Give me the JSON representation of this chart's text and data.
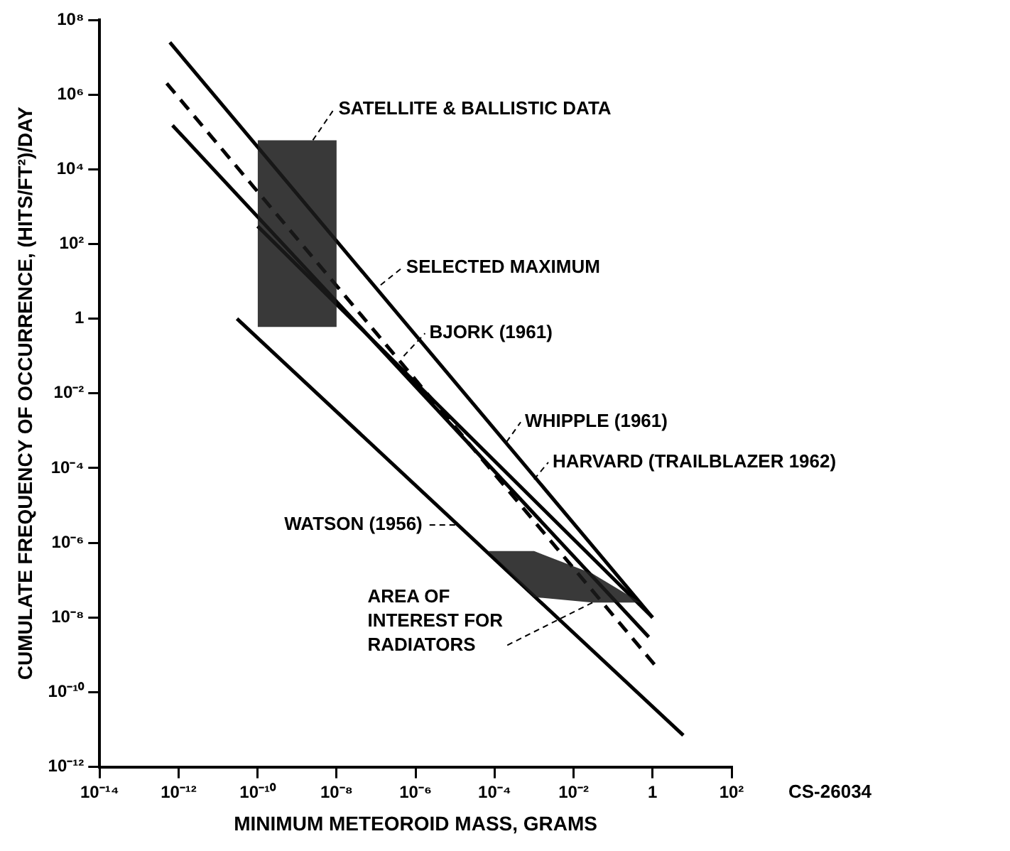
{
  "chart_data": {
    "type": "line",
    "xlabel": "MINIMUM METEOROID MASS, GRAMS",
    "ylabel": "CUMULATE FREQUENCY OF OCCURRENCE, (HITS/FT²)/DAY",
    "log": "xy",
    "grid": false,
    "legend": false,
    "marker": "none",
    "xlim": [
      1e-14,
      100
    ],
    "ylim": [
      1e-12,
      100000000.0
    ],
    "xticks": [
      {
        "value": 1e-14,
        "label": "10⁻¹⁴"
      },
      {
        "value": 1e-12,
        "label": "10⁻¹²"
      },
      {
        "value": 1e-10,
        "label": "10⁻¹⁰"
      },
      {
        "value": 1e-08,
        "label": "10⁻⁸"
      },
      {
        "value": 1e-06,
        "label": "10⁻⁶"
      },
      {
        "value": 0.0001,
        "label": "10⁻⁴"
      },
      {
        "value": 0.01,
        "label": "10⁻²"
      },
      1,
      {
        "value": 100,
        "label": "10²"
      }
    ],
    "yticks": [
      {
        "value": 1e-12,
        "label": "10⁻¹²"
      },
      {
        "value": 1e-10,
        "label": "10⁻¹⁰"
      },
      {
        "value": 1e-08,
        "label": "10⁻⁸"
      },
      {
        "value": 1e-06,
        "label": "10⁻⁶"
      },
      {
        "value": 0.0001,
        "label": "10⁻⁴"
      },
      {
        "value": 0.01,
        "label": "10⁻²"
      },
      1,
      {
        "value": 100,
        "label": "10²"
      },
      {
        "value": 10000,
        "label": "10⁴"
      },
      {
        "value": 1000000,
        "label": "10⁶"
      },
      {
        "value": 100000000,
        "label": "10⁸"
      }
    ],
    "series": [
      {
        "type": "area",
        "color": "#1a1a1a",
        "x": [
          1e-10,
          1e-08
        ],
        "values": [
          null,
          null
        ],
        "lower": [
          0.6,
          0.6
        ],
        "upper": [
          60000,
          60000
        ]
      },
      {
        "type": "area",
        "color": "#1a1a1a",
        "x": [
          7e-05,
          0.001,
          0.03,
          0.5
        ],
        "values": [
          null,
          null,
          null,
          null
        ],
        "lower": [
          6e-07,
          3.5e-08,
          2.5e-08,
          2.5e-08
        ],
        "upper": [
          6e-07,
          6e-07,
          1.5e-07,
          2.5e-08
        ]
      },
      {
        "color": "#000000",
        "line_style": "solid",
        "x": [
          6e-13,
          1
        ],
        "values": [
          25000000,
          1e-08
        ]
      },
      {
        "color": "#000000",
        "line_style": "dashed",
        "x": [
          5e-13,
          1.2
        ],
        "values": [
          2000000,
          5e-10
        ]
      },
      {
        "color": "#000000",
        "line_style": "solid",
        "x": [
          7e-13,
          0.8
        ],
        "values": [
          150000,
          3e-09
        ]
      },
      {
        "color": "#000000",
        "line_style": "solid",
        "x": [
          1e-10,
          1
        ],
        "values": [
          300,
          1e-08
        ]
      },
      {
        "color": "#000000",
        "line_style": "solid",
        "x": [
          3e-11,
          6
        ],
        "values": [
          1,
          7e-12
        ]
      }
    ],
    "annotations": [
      {
        "text": "SATELLITE & BALLISTIC DATA",
        "x": 2.5e-09,
        "y": 60000
      },
      {
        "text": "SELECTED MAXIMUM",
        "x": 1.3e-07,
        "y": 8
      },
      {
        "text": "BJORK (1961)",
        "x": 5e-07,
        "y": 0.1
      },
      {
        "text": "WHIPPLE (1961)",
        "x": 0.0002,
        "y": 0.0005
      },
      {
        "text": "HARVARD (TRAILBLAZER 1962)",
        "x": 0.001,
        "y": 5e-05
      },
      {
        "text": "WATSON (1956)",
        "x": 1e-05,
        "y": 3e-06
      },
      {
        "text": "AREA OF INTEREST FOR RADIATORS",
        "x": 0.03,
        "y": 2.5e-08
      },
      "CS-26034"
    ]
  }
}
